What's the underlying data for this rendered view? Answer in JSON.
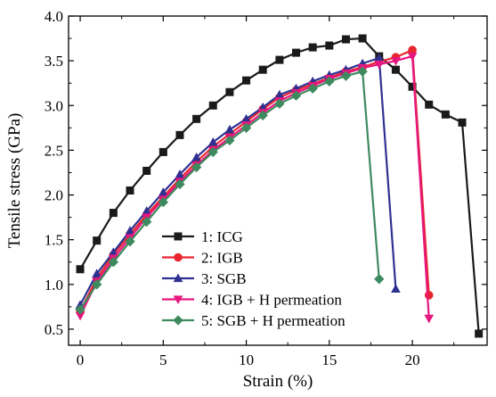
{
  "chart_data": {
    "type": "line",
    "title": "",
    "xlabel": "Strain (%)",
    "ylabel": "Tensile stress (GPa)",
    "xlim": [
      -0.7,
      24.5
    ],
    "ylim": [
      0.32,
      4.0
    ],
    "x_ticks": [
      0,
      5,
      10,
      15,
      20
    ],
    "y_ticks": [
      0.5,
      1.0,
      1.5,
      2.0,
      2.5,
      3.0,
      3.5,
      4.0
    ],
    "x_tick_labels": [
      "0",
      "5",
      "10",
      "15",
      "20"
    ],
    "y_tick_labels": [
      "0.5",
      "1.0",
      "1.5",
      "2.0",
      "2.5",
      "3.0",
      "3.5",
      "4.0"
    ],
    "grid": false,
    "legend_position": "bottom-center",
    "series": [
      {
        "name": "1: ICG",
        "color": "#1a1a1a",
        "marker": "square",
        "points": [
          [
            0,
            1.17
          ],
          [
            1,
            1.49
          ],
          [
            2,
            1.8
          ],
          [
            3,
            2.05
          ],
          [
            4,
            2.27
          ],
          [
            5,
            2.48
          ],
          [
            6,
            2.67
          ],
          [
            7,
            2.85
          ],
          [
            8,
            3.0
          ],
          [
            9,
            3.15
          ],
          [
            10,
            3.28
          ],
          [
            11,
            3.4
          ],
          [
            12,
            3.51
          ],
          [
            13,
            3.59
          ],
          [
            14,
            3.65
          ],
          [
            15,
            3.67
          ],
          [
            16,
            3.74
          ],
          [
            17,
            3.75
          ],
          [
            18,
            3.55
          ],
          [
            19,
            3.4
          ],
          [
            20,
            3.21
          ],
          [
            21,
            3.01
          ],
          [
            22,
            2.9
          ],
          [
            23,
            2.81
          ],
          [
            24,
            0.45
          ]
        ]
      },
      {
        "name": "2: IGB",
        "color": "#e8262f",
        "marker": "circle",
        "points": [
          [
            0,
            0.7
          ],
          [
            1,
            1.07
          ],
          [
            2,
            1.33
          ],
          [
            3,
            1.56
          ],
          [
            4,
            1.78
          ],
          [
            5,
            1.98
          ],
          [
            6,
            2.18
          ],
          [
            7,
            2.37
          ],
          [
            8,
            2.54
          ],
          [
            9,
            2.68
          ],
          [
            10,
            2.82
          ],
          [
            11,
            2.96
          ],
          [
            12,
            3.09
          ],
          [
            13,
            3.17
          ],
          [
            14,
            3.24
          ],
          [
            15,
            3.31
          ],
          [
            16,
            3.38
          ],
          [
            17,
            3.43
          ],
          [
            18,
            3.49
          ],
          [
            19,
            3.54
          ],
          [
            20,
            3.62
          ],
          [
            21,
            0.88
          ]
        ]
      },
      {
        "name": "3: SGB",
        "color": "#2f3192",
        "marker": "triangle",
        "points": [
          [
            0,
            0.77
          ],
          [
            1,
            1.12
          ],
          [
            2,
            1.36
          ],
          [
            3,
            1.6
          ],
          [
            4,
            1.82
          ],
          [
            5,
            2.03
          ],
          [
            6,
            2.23
          ],
          [
            7,
            2.42
          ],
          [
            8,
            2.59
          ],
          [
            9,
            2.73
          ],
          [
            10,
            2.85
          ],
          [
            11,
            2.98
          ],
          [
            12,
            3.12
          ],
          [
            13,
            3.19
          ],
          [
            14,
            3.27
          ],
          [
            15,
            3.34
          ],
          [
            16,
            3.4
          ],
          [
            17,
            3.47
          ],
          [
            18,
            3.53
          ],
          [
            19,
            0.95
          ]
        ]
      },
      {
        "name": "4: IGB + H permeation",
        "color": "#e6167e",
        "marker": "triangle-down",
        "points": [
          [
            0,
            0.65
          ],
          [
            1,
            1.03
          ],
          [
            2,
            1.29
          ],
          [
            3,
            1.52
          ],
          [
            4,
            1.75
          ],
          [
            5,
            1.95
          ],
          [
            6,
            2.15
          ],
          [
            7,
            2.33
          ],
          [
            8,
            2.5
          ],
          [
            9,
            2.64
          ],
          [
            10,
            2.78
          ],
          [
            11,
            2.92
          ],
          [
            12,
            3.05
          ],
          [
            13,
            3.14
          ],
          [
            14,
            3.22
          ],
          [
            15,
            3.3
          ],
          [
            16,
            3.36
          ],
          [
            17,
            3.42
          ],
          [
            18,
            3.46
          ],
          [
            19,
            3.5
          ],
          [
            20,
            3.55
          ],
          [
            21,
            0.62
          ]
        ]
      },
      {
        "name": "5: SGB + H permeation",
        "color": "#3d8a5e",
        "marker": "diamond",
        "points": [
          [
            0,
            0.72
          ],
          [
            1,
            1.0
          ],
          [
            2,
            1.25
          ],
          [
            3,
            1.48
          ],
          [
            4,
            1.7
          ],
          [
            5,
            1.92
          ],
          [
            6,
            2.12
          ],
          [
            7,
            2.31
          ],
          [
            8,
            2.48
          ],
          [
            9,
            2.61
          ],
          [
            10,
            2.75
          ],
          [
            11,
            2.89
          ],
          [
            12,
            3.02
          ],
          [
            13,
            3.11
          ],
          [
            14,
            3.19
          ],
          [
            15,
            3.27
          ],
          [
            16,
            3.33
          ],
          [
            17,
            3.38
          ],
          [
            18,
            1.06
          ]
        ]
      }
    ]
  }
}
